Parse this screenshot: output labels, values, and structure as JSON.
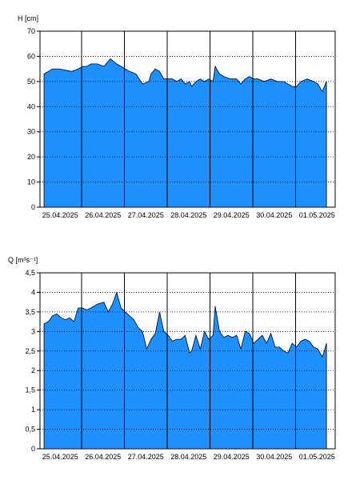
{
  "chart_data": [
    {
      "type": "area",
      "ylabel": "H [cm]",
      "ylim": [
        0,
        70
      ],
      "y_ticks": [
        "0",
        "10",
        "20",
        "30",
        "40",
        "50",
        "60",
        "70"
      ],
      "y_tick_values": [
        0,
        10,
        20,
        30,
        40,
        50,
        60,
        70
      ],
      "x_tick_labels": [
        "25.04.2025",
        "26.04.2025",
        "27.04.2025",
        "28.04.2025",
        "29.04.2025",
        "30.04.2025",
        "01.05.2025"
      ],
      "grid": true,
      "fill_color": "#1e90ff",
      "series": [
        {
          "day_offset": [
            0.0,
            0.1,
            0.2,
            0.35,
            0.5,
            0.65,
            0.8,
            0.9,
            1.0,
            1.1,
            1.25,
            1.4,
            1.55,
            1.7,
            1.8,
            1.9,
            2.0,
            2.15,
            2.3,
            2.45,
            2.5,
            2.6,
            2.7,
            2.8,
            2.9,
            3.0,
            3.1,
            3.2,
            3.3,
            3.4,
            3.45,
            3.55,
            3.65,
            3.75,
            3.85,
            3.95,
            4.0,
            4.1,
            4.2,
            4.35,
            4.5,
            4.6,
            4.7,
            4.8,
            4.9,
            5.0,
            5.15,
            5.3,
            5.45,
            5.6,
            5.7,
            5.8,
            5.9,
            6.0,
            6.15,
            6.3,
            6.4,
            6.5,
            6.6
          ],
          "values": [
            53,
            54,
            55,
            55,
            54.5,
            54,
            55,
            56,
            56,
            57,
            57,
            56,
            59,
            57,
            56,
            55,
            54,
            53,
            49,
            50,
            53,
            55,
            54,
            51,
            51,
            51,
            50,
            51,
            49,
            50,
            48,
            50,
            51,
            50,
            51,
            50,
            56,
            53,
            52,
            51,
            51,
            49,
            51,
            52,
            51,
            51,
            50,
            51,
            50,
            50,
            49,
            48,
            48,
            50,
            51,
            50,
            49,
            46,
            50
          ]
        }
      ]
    },
    {
      "type": "area",
      "ylabel": "Q [m³s⁻¹]",
      "ylim": [
        0,
        4.5
      ],
      "y_ticks": [
        "0",
        "0,5",
        "1",
        "1,5",
        "2",
        "2,5",
        "3",
        "3,5",
        "4",
        "4,5"
      ],
      "y_tick_values": [
        0,
        0.5,
        1,
        1.5,
        2,
        2.5,
        3,
        3.5,
        4,
        4.5
      ],
      "x_tick_labels": [
        "25.04.2025",
        "26.04.2025",
        "27.04.2025",
        "28.04.2025",
        "29.04.2025",
        "30.04.2025",
        "01.05.2025"
      ],
      "grid": true,
      "fill_color": "#1e90ff",
      "series": [
        {
          "day_offset": [
            0.0,
            0.1,
            0.2,
            0.3,
            0.4,
            0.5,
            0.6,
            0.7,
            0.8,
            0.9,
            1.0,
            1.1,
            1.25,
            1.4,
            1.5,
            1.6,
            1.7,
            1.8,
            1.9,
            2.0,
            2.1,
            2.2,
            2.3,
            2.4,
            2.5,
            2.6,
            2.7,
            2.8,
            2.9,
            3.0,
            3.1,
            3.2,
            3.3,
            3.4,
            3.45,
            3.55,
            3.65,
            3.75,
            3.85,
            3.95,
            4.0,
            4.1,
            4.2,
            4.3,
            4.4,
            4.5,
            4.6,
            4.7,
            4.8,
            4.9,
            5.0,
            5.1,
            5.2,
            5.3,
            5.4,
            5.5,
            5.6,
            5.7,
            5.8,
            5.9,
            6.0,
            6.1,
            6.2,
            6.3,
            6.4,
            6.5,
            6.55,
            6.6
          ],
          "values": [
            3.2,
            3.25,
            3.4,
            3.45,
            3.35,
            3.3,
            3.35,
            3.25,
            3.6,
            3.6,
            3.55,
            3.6,
            3.7,
            3.75,
            3.5,
            3.7,
            4.0,
            3.6,
            3.5,
            3.4,
            3.3,
            3.1,
            3.0,
            2.55,
            2.8,
            2.95,
            3.5,
            3.0,
            2.9,
            2.75,
            2.8,
            2.8,
            2.9,
            2.45,
            2.5,
            2.9,
            2.55,
            3.0,
            2.8,
            2.9,
            3.65,
            3.0,
            2.85,
            2.9,
            2.85,
            2.9,
            2.55,
            3.0,
            2.95,
            2.7,
            2.8,
            2.9,
            2.7,
            2.95,
            2.6,
            2.6,
            2.5,
            2.45,
            2.7,
            2.6,
            2.75,
            2.8,
            2.75,
            2.6,
            2.55,
            2.35,
            2.5,
            2.7
          ]
        }
      ]
    }
  ]
}
